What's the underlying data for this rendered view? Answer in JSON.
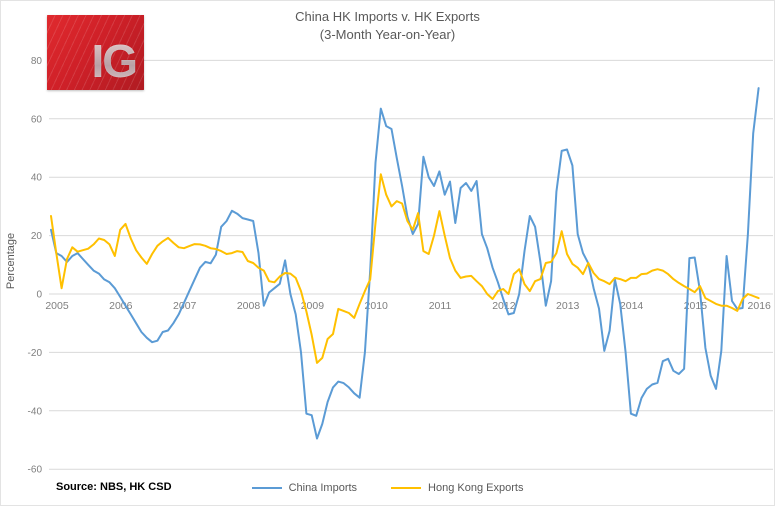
{
  "header": {
    "title_line1": "China HK Imports v. HK Exports",
    "title_line2": "(3-Month Year-on-Year)"
  },
  "logo": {
    "text": "IG",
    "brand_color": "#CF2028"
  },
  "source": {
    "label": "Source: NBS, HK CSD"
  },
  "legend": {
    "items": [
      {
        "label": "China Imports",
        "color": "#5B9BD5"
      },
      {
        "label": "Hong Kong Exports",
        "color": "#FFC000"
      }
    ]
  },
  "chart_data": {
    "type": "line",
    "title": "China HK Imports v. HK Exports (3-Month Year-on-Year)",
    "xlabel": "",
    "ylabel": "Percentage",
    "ylim": [
      -60,
      80
    ],
    "ytick_step": 20,
    "grid": "horizontal",
    "gridline_color": "#d9d9d9",
    "tick_label_color": "#7f7f7f",
    "legend_position": "bottom-center",
    "x_tick_labels": [
      "2005",
      "2006",
      "2007",
      "2008",
      "2009",
      "2010",
      "2011",
      "2012",
      "2013",
      "2014",
      "2015",
      "2016"
    ],
    "x_start": "2005-01",
    "x_end": "2016-02",
    "x_frequency": "monthly",
    "series": [
      {
        "name": "China Imports",
        "color": "#5B9BD5",
        "values": [
          22,
          14,
          13,
          11,
          13,
          14,
          12,
          10,
          8,
          7,
          5,
          4,
          2,
          -1,
          -4,
          -7,
          -10,
          -13,
          -15,
          -16.5,
          -16,
          -13,
          -12.5,
          -10,
          -7,
          -3,
          1,
          5,
          9,
          11,
          10.5,
          13.5,
          23,
          25,
          28.5,
          27.5,
          26,
          25.5,
          25,
          14,
          -4,
          0.5,
          2,
          3.5,
          11.5,
          0,
          -7,
          -20,
          -41,
          -41.5,
          -49.5,
          -44.5,
          -37,
          -32,
          -30,
          -30.5,
          -32,
          -34,
          -35.5,
          -20,
          8,
          45,
          63.5,
          57.5,
          56.5,
          46.5,
          37,
          26.5,
          20.5,
          24,
          47,
          40,
          37,
          42,
          34,
          38.5,
          24.3,
          36.3,
          38,
          35.3,
          38.7,
          20.5,
          15.7,
          9,
          4,
          -1.7,
          -7,
          -6.5,
          0,
          14.7,
          26.7,
          23,
          11,
          -4,
          4.4,
          35,
          49,
          49.5,
          44,
          20.5,
          14,
          10.5,
          2,
          -5,
          -19.5,
          -12.6,
          5,
          -3.4,
          -20,
          -41,
          -41.7,
          -35.6,
          -32.5,
          -31,
          -30.4,
          -23,
          -22.2,
          -26.3,
          -27.4,
          -25.6,
          12.3,
          12.5,
          1,
          -18.5,
          -28,
          -32.5,
          -19.5,
          13,
          -2.4,
          -5.1,
          -4.8,
          20.5,
          55,
          70.5
        ]
      },
      {
        "name": "Hong Kong Exports",
        "color": "#FFC000",
        "values": [
          26.7,
          14,
          2,
          12,
          16,
          14.5,
          15,
          15.5,
          17,
          19,
          18.5,
          17,
          13,
          22,
          24,
          19,
          15,
          12.5,
          10.3,
          13.7,
          16.5,
          18,
          19.2,
          17.5,
          16,
          15.7,
          16.4,
          17.1,
          17,
          16.5,
          15.7,
          15.4,
          14.7,
          13.7,
          14,
          14.7,
          14.4,
          11.3,
          10.6,
          9,
          8,
          4.4,
          4,
          6,
          7.2,
          7,
          5.5,
          1,
          -6,
          -14,
          -23.6,
          -21.9,
          -15.4,
          -13.7,
          -5.1,
          -5.8,
          -6.5,
          -8.2,
          -3.4,
          1,
          5,
          24.3,
          41,
          34,
          30,
          31.8,
          31,
          25,
          22,
          27.7,
          14.7,
          13.7,
          20,
          28.4,
          20,
          12.3,
          8,
          5.5,
          6,
          6.2,
          4.4,
          2.7,
          0,
          -1.7,
          1,
          1.7,
          0,
          6.8,
          8.5,
          3.4,
          1,
          4.4,
          5.1,
          10.6,
          11,
          14,
          21.5,
          13.7,
          10.3,
          9,
          6.8,
          10.6,
          7.2,
          5.1,
          4.4,
          3.4,
          5.5,
          5.1,
          4.4,
          5.5,
          5.5,
          6.8,
          7,
          8,
          8.5,
          8,
          6.8,
          5.1,
          3.8,
          2.7,
          1.7,
          0.6,
          2.7,
          -1.4,
          -2.4,
          -3.4,
          -4,
          -4,
          -4.8,
          -5.8,
          -1.7,
          0,
          -0.7,
          -1.4
        ]
      }
    ]
  }
}
